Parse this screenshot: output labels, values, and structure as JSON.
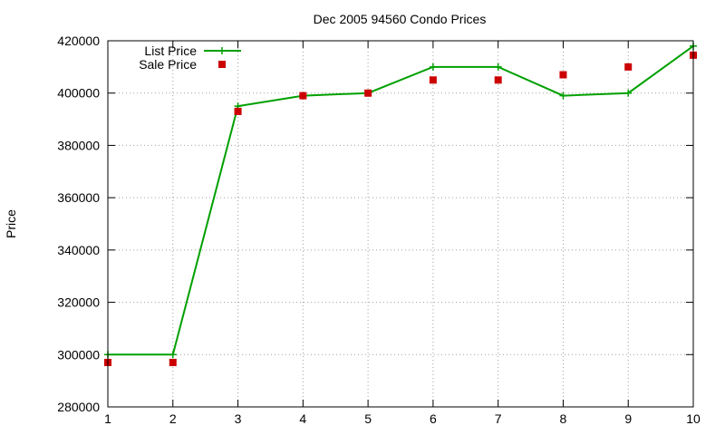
{
  "chart_data": {
    "type": "line",
    "title": "Dec 2005 94560 Condo Prices",
    "xlabel": "",
    "ylabel": "Price",
    "xlim": [
      1,
      10
    ],
    "ylim": [
      280000,
      420000
    ],
    "x_ticks": [
      "1",
      "2",
      "3",
      "4",
      "5",
      "6",
      "7",
      "8",
      "9",
      "10"
    ],
    "y_ticks": [
      "280000",
      "300000",
      "320000",
      "340000",
      "360000",
      "380000",
      "400000",
      "420000"
    ],
    "grid": true,
    "legend_position": "top-left",
    "series": [
      {
        "name": "List Price",
        "style": "line-with-plus-markers",
        "color": "#00a000",
        "points": [
          {
            "x": 1,
            "y": 300000
          },
          {
            "x": 2,
            "y": 300000
          },
          {
            "x": 3,
            "y": 395000
          },
          {
            "x": 4,
            "y": 399000
          },
          {
            "x": 5,
            "y": 400000
          },
          {
            "x": 6,
            "y": 410000
          },
          {
            "x": 7,
            "y": 410000
          },
          {
            "x": 8,
            "y": 399000
          },
          {
            "x": 9,
            "y": 400000
          },
          {
            "x": 10,
            "y": 418000
          }
        ]
      },
      {
        "name": "Sale Price",
        "style": "square-markers",
        "color": "#cc0000",
        "points": [
          {
            "x": 1,
            "y": 297000
          },
          {
            "x": 2,
            "y": 297000
          },
          {
            "x": 3,
            "y": 393000
          },
          {
            "x": 4,
            "y": 399000
          },
          {
            "x": 5,
            "y": 400000
          },
          {
            "x": 6,
            "y": 405000
          },
          {
            "x": 7,
            "y": 405000
          },
          {
            "x": 8,
            "y": 407000
          },
          {
            "x": 9,
            "y": 410000
          },
          {
            "x": 10,
            "y": 414500
          }
        ]
      }
    ]
  }
}
